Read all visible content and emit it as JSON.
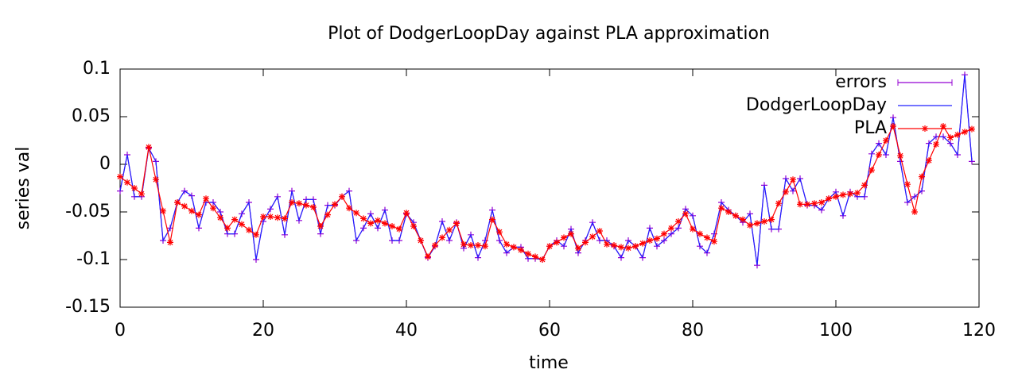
{
  "chart_data": {
    "type": "line",
    "title": "Plot of DodgerLoopDay against PLA approximation",
    "xlabel": "time",
    "ylabel": "series val",
    "xlim": [
      0,
      120
    ],
    "ylim": [
      -0.15,
      0.1
    ],
    "xticks": [
      0,
      20,
      40,
      60,
      80,
      100,
      120
    ],
    "yticks": [
      -0.15,
      -0.1,
      -0.05,
      0,
      0.05,
      0.1
    ],
    "legend": "top right",
    "x": [
      0,
      1,
      2,
      3,
      4,
      5,
      6,
      7,
      8,
      9,
      10,
      11,
      12,
      13,
      14,
      15,
      16,
      17,
      18,
      19,
      20,
      21,
      22,
      23,
      24,
      25,
      26,
      27,
      28,
      29,
      30,
      31,
      32,
      33,
      34,
      35,
      36,
      37,
      38,
      39,
      40,
      41,
      42,
      43,
      44,
      45,
      46,
      47,
      48,
      49,
      50,
      51,
      52,
      53,
      54,
      55,
      56,
      57,
      58,
      59,
      60,
      61,
      62,
      63,
      64,
      65,
      66,
      67,
      68,
      69,
      70,
      71,
      72,
      73,
      74,
      75,
      76,
      77,
      78,
      79,
      80,
      81,
      82,
      83,
      84,
      85,
      86,
      87,
      88,
      89,
      90,
      91,
      92,
      93,
      94,
      95,
      96,
      97,
      98,
      99,
      100,
      101,
      102,
      103,
      104,
      105,
      106,
      107,
      108,
      109,
      110,
      111,
      112,
      113,
      114,
      115,
      116,
      117,
      118,
      119
    ],
    "series": [
      {
        "name": "errors",
        "color": "#9400d3",
        "marker": "plus",
        "values": [
          -0.028,
          0.01,
          -0.034,
          -0.034,
          0.017,
          0.003,
          -0.08,
          -0.067,
          -0.04,
          -0.028,
          -0.033,
          -0.067,
          -0.04,
          -0.04,
          -0.05,
          -0.073,
          -0.073,
          -0.052,
          -0.04,
          -0.1,
          -0.06,
          -0.047,
          -0.034,
          -0.074,
          -0.028,
          -0.059,
          -0.037,
          -0.037,
          -0.073,
          -0.043,
          -0.043,
          -0.034,
          -0.028,
          -0.08,
          -0.067,
          -0.052,
          -0.067,
          -0.048,
          -0.08,
          -0.08,
          -0.052,
          -0.061,
          -0.08,
          -0.098,
          -0.086,
          -0.06,
          -0.08,
          -0.061,
          -0.088,
          -0.074,
          -0.098,
          -0.08,
          -0.048,
          -0.08,
          -0.093,
          -0.087,
          -0.087,
          -0.099,
          -0.099,
          -0.1,
          -0.086,
          -0.08,
          -0.086,
          -0.068,
          -0.093,
          -0.08,
          -0.061,
          -0.08,
          -0.08,
          -0.086,
          -0.098,
          -0.08,
          -0.086,
          -0.098,
          -0.067,
          -0.086,
          -0.08,
          -0.073,
          -0.067,
          -0.047,
          -0.054,
          -0.086,
          -0.093,
          -0.073,
          -0.04,
          -0.048,
          -0.054,
          -0.061,
          -0.052,
          -0.106,
          -0.022,
          -0.068,
          -0.068,
          -0.015,
          -0.028,
          -0.015,
          -0.043,
          -0.043,
          -0.048,
          -0.036,
          -0.029,
          -0.054,
          -0.029,
          -0.034,
          -0.034,
          0.011,
          0.022,
          0.01,
          0.049,
          0.003,
          -0.04,
          -0.034,
          -0.028,
          0.022,
          0.029,
          0.029,
          0.022,
          0.01,
          0.094,
          0.003
        ]
      },
      {
        "name": "DodgerLoopDay",
        "color": "#2020ff",
        "values": [
          -0.028,
          0.01,
          -0.034,
          -0.034,
          0.017,
          0.003,
          -0.08,
          -0.067,
          -0.04,
          -0.028,
          -0.033,
          -0.067,
          -0.04,
          -0.04,
          -0.05,
          -0.073,
          -0.073,
          -0.052,
          -0.04,
          -0.1,
          -0.06,
          -0.047,
          -0.034,
          -0.074,
          -0.028,
          -0.059,
          -0.037,
          -0.037,
          -0.073,
          -0.043,
          -0.043,
          -0.034,
          -0.028,
          -0.08,
          -0.067,
          -0.052,
          -0.067,
          -0.048,
          -0.08,
          -0.08,
          -0.052,
          -0.061,
          -0.08,
          -0.098,
          -0.086,
          -0.06,
          -0.08,
          -0.061,
          -0.088,
          -0.074,
          -0.098,
          -0.08,
          -0.048,
          -0.08,
          -0.093,
          -0.087,
          -0.087,
          -0.099,
          -0.099,
          -0.1,
          -0.086,
          -0.08,
          -0.086,
          -0.068,
          -0.093,
          -0.08,
          -0.061,
          -0.08,
          -0.08,
          -0.086,
          -0.098,
          -0.08,
          -0.086,
          -0.098,
          -0.067,
          -0.086,
          -0.08,
          -0.073,
          -0.067,
          -0.047,
          -0.054,
          -0.086,
          -0.093,
          -0.073,
          -0.04,
          -0.048,
          -0.054,
          -0.061,
          -0.052,
          -0.106,
          -0.022,
          -0.068,
          -0.068,
          -0.015,
          -0.028,
          -0.015,
          -0.043,
          -0.043,
          -0.048,
          -0.036,
          -0.029,
          -0.054,
          -0.029,
          -0.034,
          -0.034,
          0.011,
          0.022,
          0.01,
          0.049,
          0.003,
          -0.04,
          -0.034,
          -0.028,
          0.022,
          0.029,
          0.029,
          0.022,
          0.01,
          0.094,
          0.003
        ]
      },
      {
        "name": "PLA",
        "color": "#ff0000",
        "marker": "star",
        "values": [
          -0.013,
          -0.019,
          -0.025,
          -0.031,
          0.018,
          -0.016,
          -0.049,
          -0.082,
          -0.04,
          -0.044,
          -0.049,
          -0.053,
          -0.036,
          -0.046,
          -0.056,
          -0.067,
          -0.058,
          -0.063,
          -0.069,
          -0.074,
          -0.055,
          -0.055,
          -0.056,
          -0.057,
          -0.04,
          -0.041,
          -0.043,
          -0.045,
          -0.065,
          -0.053,
          -0.042,
          -0.034,
          -0.046,
          -0.051,
          -0.057,
          -0.062,
          -0.059,
          -0.062,
          -0.065,
          -0.068,
          -0.051,
          -0.065,
          -0.08,
          -0.097,
          -0.085,
          -0.077,
          -0.069,
          -0.062,
          -0.084,
          -0.085,
          -0.085,
          -0.086,
          -0.058,
          -0.071,
          -0.084,
          -0.087,
          -0.09,
          -0.094,
          -0.097,
          -0.1,
          -0.086,
          -0.082,
          -0.077,
          -0.073,
          -0.088,
          -0.082,
          -0.076,
          -0.07,
          -0.084,
          -0.085,
          -0.087,
          -0.088,
          -0.086,
          -0.083,
          -0.08,
          -0.078,
          -0.073,
          -0.067,
          -0.06,
          -0.052,
          -0.068,
          -0.073,
          -0.077,
          -0.081,
          -0.046,
          -0.05,
          -0.054,
          -0.058,
          -0.064,
          -0.062,
          -0.06,
          -0.058,
          -0.041,
          -0.029,
          -0.016,
          -0.042,
          -0.042,
          -0.041,
          -0.04,
          -0.036,
          -0.034,
          -0.032,
          -0.031,
          -0.03,
          -0.022,
          -0.006,
          0.01,
          0.025,
          0.04,
          0.009,
          -0.021,
          -0.05,
          -0.013,
          0.004,
          0.021,
          0.04,
          0.028,
          0.031,
          0.034,
          0.037
        ]
      }
    ]
  }
}
